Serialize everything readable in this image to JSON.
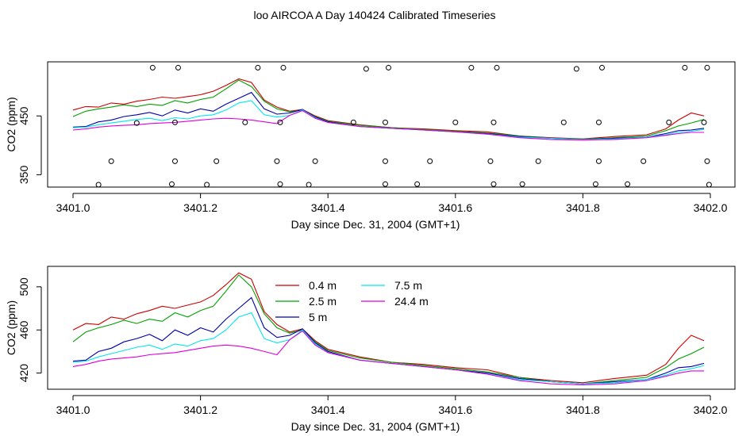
{
  "title": "loo AIRCOA A  Day 140424  Calibrated Timeseries",
  "colors": {
    "0.4 m": "#cc0000",
    "2.5 m": "#00a000",
    "5 m": "#0000aa",
    "7.5 m": "#00e5ee",
    "24.4 m": "#dd00dd"
  },
  "chart_data": [
    {
      "type": "line",
      "xlabel": "Day since Dec. 31, 2004 (GMT+1)",
      "ylabel": "CO2 (ppm)",
      "xlim": [
        3401.0,
        3402.0
      ],
      "ylim": [
        329,
        542
      ],
      "x_ticks": [
        "3401.0",
        "3401.2",
        "3401.4",
        "3401.6",
        "3401.8",
        "3402.0"
      ],
      "y_ticks": [
        "350",
        "450"
      ],
      "series": [
        {
          "key": "0.4 m",
          "x": [
            3401.0,
            3401.02,
            3401.04,
            3401.06,
            3401.08,
            3401.1,
            3401.12,
            3401.14,
            3401.16,
            3401.18,
            3401.2,
            3401.22,
            3401.24,
            3401.26,
            3401.28,
            3401.3,
            3401.32,
            3401.34,
            3401.36,
            3401.38,
            3401.4,
            3401.45,
            3401.5,
            3401.55,
            3401.6,
            3401.65,
            3401.7,
            3401.75,
            3401.8,
            3401.85,
            3401.9,
            3401.93,
            3401.95,
            3401.97,
            3401.99
          ],
          "values": [
            460,
            466,
            465,
            472,
            470,
            475,
            478,
            482,
            480,
            483,
            486,
            492,
            502,
            513,
            507,
            477,
            465,
            458,
            461,
            450,
            442,
            435,
            430,
            428,
            425,
            423,
            416,
            413,
            411,
            415,
            418,
            428,
            443,
            455,
            450
          ]
        },
        {
          "key": "2.5 m",
          "x": [
            3401.0,
            3401.02,
            3401.04,
            3401.06,
            3401.08,
            3401.1,
            3401.12,
            3401.14,
            3401.16,
            3401.18,
            3401.2,
            3401.22,
            3401.24,
            3401.26,
            3401.28,
            3401.3,
            3401.32,
            3401.34,
            3401.36,
            3401.38,
            3401.4,
            3401.45,
            3401.5,
            3401.55,
            3401.6,
            3401.65,
            3401.7,
            3401.75,
            3401.8,
            3401.85,
            3401.9,
            3401.93,
            3401.95,
            3401.97,
            3401.99
          ],
          "values": [
            449,
            458,
            462,
            465,
            469,
            466,
            470,
            468,
            476,
            472,
            478,
            482,
            496,
            511,
            500,
            475,
            462,
            457,
            460,
            449,
            441,
            434,
            430,
            427,
            424,
            421,
            416,
            412,
            410,
            413,
            416,
            425,
            433,
            438,
            444
          ]
        },
        {
          "key": "5 m",
          "x": [
            3401.0,
            3401.02,
            3401.04,
            3401.06,
            3401.08,
            3401.1,
            3401.12,
            3401.14,
            3401.16,
            3401.18,
            3401.2,
            3401.22,
            3401.24,
            3401.26,
            3401.28,
            3401.3,
            3401.32,
            3401.34,
            3401.36,
            3401.38,
            3401.4,
            3401.45,
            3401.5,
            3401.55,
            3401.6,
            3401.65,
            3401.7,
            3401.75,
            3401.8,
            3401.85,
            3401.9,
            3401.93,
            3401.95,
            3401.97,
            3401.99
          ],
          "values": [
            431,
            432,
            440,
            443,
            449,
            452,
            456,
            450,
            460,
            455,
            462,
            458,
            470,
            480,
            490,
            462,
            453,
            455,
            461,
            448,
            440,
            432,
            429,
            426,
            423,
            420,
            415,
            412,
            410,
            412,
            414,
            420,
            425,
            426,
            429
          ]
        },
        {
          "key": "7.5 m",
          "x": [
            3401.0,
            3401.02,
            3401.04,
            3401.06,
            3401.08,
            3401.1,
            3401.12,
            3401.14,
            3401.16,
            3401.18,
            3401.2,
            3401.22,
            3401.24,
            3401.26,
            3401.28,
            3401.3,
            3401.32,
            3401.34,
            3401.36,
            3401.38,
            3401.4,
            3401.45,
            3401.5,
            3401.55,
            3401.6,
            3401.65,
            3401.7,
            3401.75,
            3401.8,
            3401.85,
            3401.9,
            3401.93,
            3401.95,
            3401.97,
            3401.99
          ],
          "values": [
            430,
            431,
            435,
            438,
            441,
            444,
            446,
            442,
            447,
            445,
            450,
            452,
            460,
            472,
            476,
            452,
            448,
            451,
            460,
            447,
            439,
            432,
            429,
            426,
            423,
            419,
            414,
            412,
            410,
            411,
            414,
            418,
            422,
            424,
            427
          ]
        },
        {
          "key": "24.4 m",
          "x": [
            3401.0,
            3401.02,
            3401.04,
            3401.06,
            3401.08,
            3401.1,
            3401.12,
            3401.14,
            3401.16,
            3401.18,
            3401.2,
            3401.22,
            3401.24,
            3401.26,
            3401.28,
            3401.3,
            3401.32,
            3401.34,
            3401.36,
            3401.38,
            3401.4,
            3401.45,
            3401.5,
            3401.55,
            3401.6,
            3401.65,
            3401.7,
            3401.75,
            3401.8,
            3401.85,
            3401.9,
            3401.93,
            3401.95,
            3401.97,
            3401.99
          ],
          "values": [
            426,
            428,
            431,
            433,
            434,
            435,
            437,
            438,
            439,
            441,
            443,
            445,
            446,
            445,
            443,
            440,
            437,
            451,
            459,
            446,
            439,
            432,
            429,
            426,
            423,
            419,
            413,
            410,
            409,
            410,
            413,
            417,
            420,
            422,
            422
          ]
        }
      ],
      "markers": {
        "style": "open-circle",
        "x": [
          3401.04,
          3401.06,
          3401.1,
          3401.125,
          3401.155,
          3401.16,
          3401.16,
          3401.165,
          3401.21,
          3401.225,
          3401.27,
          3401.29,
          3401.32,
          3401.325,
          3401.325,
          3401.33,
          3401.37,
          3401.38,
          3401.44,
          3401.46,
          3401.49,
          3401.49,
          3401.49,
          3401.495,
          3401.54,
          3401.56,
          3401.6,
          3401.625,
          3401.655,
          3401.66,
          3401.66,
          3401.665,
          3401.705,
          3401.73,
          3401.77,
          3401.79,
          3401.82,
          3401.825,
          3401.825,
          3401.83,
          3401.87,
          3401.895,
          3401.935,
          3401.96,
          3401.99,
          3401.995,
          3401.995,
          3401.998
        ],
        "values": [
          333,
          373,
          438,
          532,
          334,
          373,
          439,
          532,
          333,
          373,
          439,
          532,
          373,
          334,
          439,
          532,
          333,
          373,
          439,
          530,
          334,
          373,
          439,
          532,
          334,
          373,
          439,
          532,
          373,
          334,
          439,
          532,
          334,
          373,
          439,
          530,
          334,
          373,
          439,
          532,
          334,
          373,
          439,
          532,
          439,
          532,
          373,
          333
        ]
      }
    },
    {
      "type": "line",
      "xlabel": "Day since Dec. 31, 2004 (GMT+1)",
      "ylabel": "CO2 (ppm)",
      "xlim": [
        3401.0,
        3402.0
      ],
      "ylim": [
        405,
        519
      ],
      "x_ticks": [
        "3401.0",
        "3401.2",
        "3401.4",
        "3401.6",
        "3401.8",
        "3402.0"
      ],
      "y_ticks": [
        "420",
        "460",
        "500"
      ],
      "legend": [
        "0.4 m",
        "2.5 m",
        "5 m",
        "7.5 m",
        "24.4 m"
      ],
      "legend_position": "top-center",
      "series": [
        {
          "key": "0.4 m",
          "x": [
            3401.0,
            3401.02,
            3401.04,
            3401.06,
            3401.08,
            3401.1,
            3401.12,
            3401.14,
            3401.16,
            3401.18,
            3401.2,
            3401.22,
            3401.24,
            3401.26,
            3401.28,
            3401.3,
            3401.32,
            3401.34,
            3401.36,
            3401.38,
            3401.4,
            3401.45,
            3401.5,
            3401.55,
            3401.6,
            3401.65,
            3401.7,
            3401.75,
            3401.8,
            3401.85,
            3401.9,
            3401.93,
            3401.95,
            3401.97,
            3401.99
          ],
          "values": [
            460,
            466,
            465,
            472,
            470,
            475,
            478,
            482,
            480,
            483,
            486,
            492,
            502,
            513,
            507,
            477,
            465,
            458,
            461,
            450,
            442,
            435,
            430,
            428,
            425,
            423,
            416,
            413,
            411,
            415,
            418,
            428,
            443,
            455,
            450
          ]
        },
        {
          "key": "2.5 m",
          "x": [
            3401.0,
            3401.02,
            3401.04,
            3401.06,
            3401.08,
            3401.1,
            3401.12,
            3401.14,
            3401.16,
            3401.18,
            3401.2,
            3401.22,
            3401.24,
            3401.26,
            3401.28,
            3401.3,
            3401.32,
            3401.34,
            3401.36,
            3401.38,
            3401.4,
            3401.45,
            3401.5,
            3401.55,
            3401.6,
            3401.65,
            3401.7,
            3401.75,
            3401.8,
            3401.85,
            3401.9,
            3401.93,
            3401.95,
            3401.97,
            3401.99
          ],
          "values": [
            449,
            458,
            462,
            465,
            469,
            466,
            470,
            468,
            476,
            472,
            478,
            482,
            496,
            511,
            500,
            475,
            462,
            457,
            460,
            449,
            441,
            434,
            430,
            427,
            424,
            421,
            416,
            412,
            410,
            413,
            416,
            425,
            433,
            438,
            444
          ]
        },
        {
          "key": "5 m",
          "x": [
            3401.0,
            3401.02,
            3401.04,
            3401.06,
            3401.08,
            3401.1,
            3401.12,
            3401.14,
            3401.16,
            3401.18,
            3401.2,
            3401.22,
            3401.24,
            3401.26,
            3401.28,
            3401.3,
            3401.32,
            3401.34,
            3401.36,
            3401.38,
            3401.4,
            3401.45,
            3401.5,
            3401.55,
            3401.6,
            3401.65,
            3401.7,
            3401.75,
            3401.8,
            3401.85,
            3401.9,
            3401.93,
            3401.95,
            3401.97,
            3401.99
          ],
          "values": [
            431,
            432,
            440,
            443,
            449,
            452,
            456,
            450,
            460,
            455,
            462,
            458,
            470,
            480,
            490,
            462,
            453,
            455,
            461,
            448,
            440,
            432,
            429,
            426,
            423,
            420,
            415,
            412,
            410,
            412,
            414,
            420,
            425,
            426,
            429
          ]
        },
        {
          "key": "7.5 m",
          "x": [
            3401.0,
            3401.02,
            3401.04,
            3401.06,
            3401.08,
            3401.1,
            3401.12,
            3401.14,
            3401.16,
            3401.18,
            3401.2,
            3401.22,
            3401.24,
            3401.26,
            3401.28,
            3401.3,
            3401.32,
            3401.34,
            3401.36,
            3401.38,
            3401.4,
            3401.45,
            3401.5,
            3401.55,
            3401.6,
            3401.65,
            3401.7,
            3401.75,
            3401.8,
            3401.85,
            3401.9,
            3401.93,
            3401.95,
            3401.97,
            3401.99
          ],
          "values": [
            430,
            431,
            435,
            438,
            441,
            444,
            446,
            442,
            447,
            445,
            450,
            452,
            460,
            472,
            476,
            452,
            448,
            451,
            460,
            447,
            439,
            432,
            429,
            426,
            423,
            419,
            414,
            412,
            410,
            411,
            414,
            418,
            422,
            424,
            427
          ]
        },
        {
          "key": "24.4 m",
          "x": [
            3401.0,
            3401.02,
            3401.04,
            3401.06,
            3401.08,
            3401.1,
            3401.12,
            3401.14,
            3401.16,
            3401.18,
            3401.2,
            3401.22,
            3401.24,
            3401.26,
            3401.28,
            3401.3,
            3401.32,
            3401.34,
            3401.36,
            3401.38,
            3401.4,
            3401.45,
            3401.5,
            3401.55,
            3401.6,
            3401.65,
            3401.7,
            3401.75,
            3401.8,
            3401.85,
            3401.9,
            3401.93,
            3401.95,
            3401.97,
            3401.99
          ],
          "values": [
            426,
            428,
            431,
            433,
            434,
            435,
            437,
            438,
            439,
            441,
            443,
            445,
            446,
            445,
            443,
            440,
            437,
            451,
            459,
            446,
            439,
            432,
            429,
            426,
            423,
            419,
            413,
            410,
            409,
            410,
            413,
            417,
            420,
            422,
            422
          ]
        }
      ]
    }
  ]
}
